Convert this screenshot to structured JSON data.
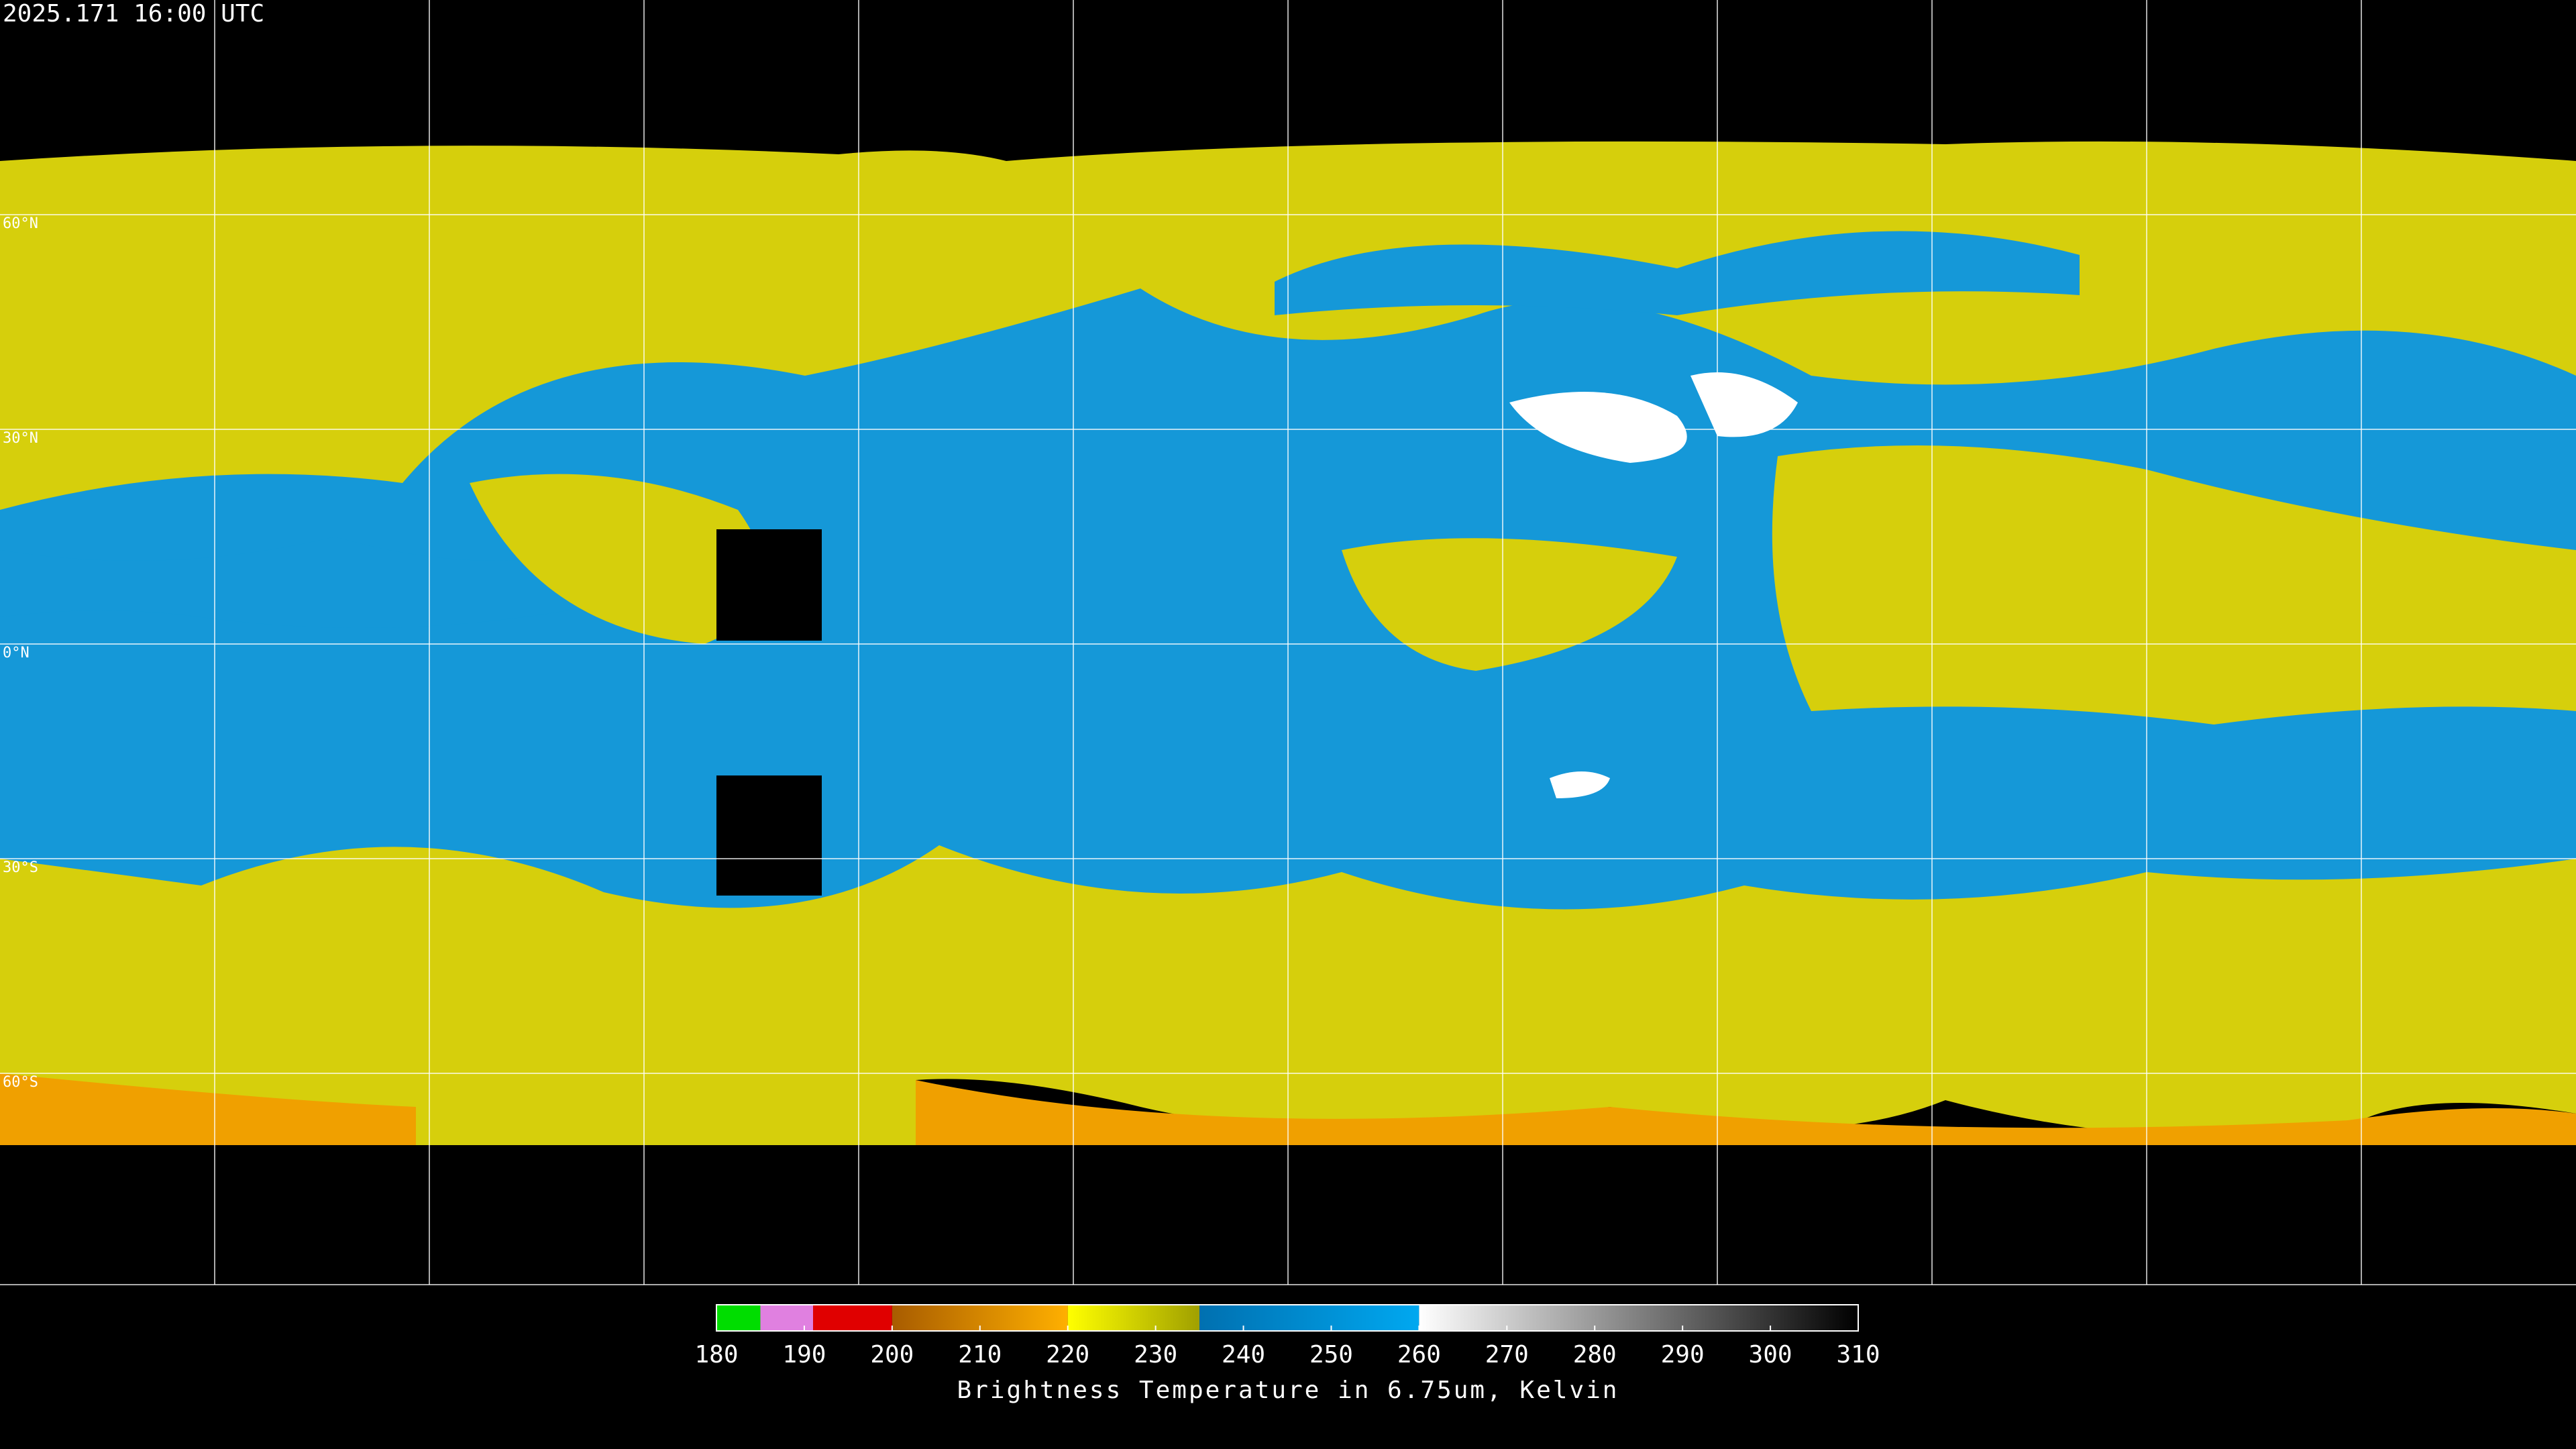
{
  "timestamp": "2025.171 16:00 UTC",
  "graticule": {
    "lats": [
      {
        "value": 60,
        "label": "60°N"
      },
      {
        "value": 30,
        "label": "30°N"
      },
      {
        "value": 0,
        "label": "0°N"
      },
      {
        "value": -30,
        "label": "30°S"
      },
      {
        "value": -60,
        "label": "60°S"
      }
    ]
  },
  "colorbar": {
    "title": "Brightness Temperature in 6.75um, Kelvin",
    "lim": [
      180,
      310
    ],
    "ticks": [
      180,
      190,
      200,
      210,
      220,
      230,
      240,
      250,
      260,
      270,
      280,
      290,
      300,
      310
    ],
    "segments": [
      {
        "from": 180,
        "to": 185,
        "colors": [
          "#00dd00",
          "#00dd00"
        ]
      },
      {
        "from": 185,
        "to": 191,
        "colors": [
          "#e080e0",
          "#e080e0"
        ]
      },
      {
        "from": 191,
        "to": 200,
        "colors": [
          "#e00000",
          "#e00000"
        ]
      },
      {
        "from": 200,
        "to": 220,
        "colors": [
          "#a85c00",
          "#ffb000"
        ]
      },
      {
        "from": 220,
        "to": 235,
        "colors": [
          "#ffff00",
          "#a0a000"
        ]
      },
      {
        "from": 235,
        "to": 260,
        "colors": [
          "#0070b0",
          "#00a8f0"
        ]
      },
      {
        "from": 260,
        "to": 310,
        "colors": [
          "#ffffff",
          "#000000"
        ]
      }
    ]
  }
}
